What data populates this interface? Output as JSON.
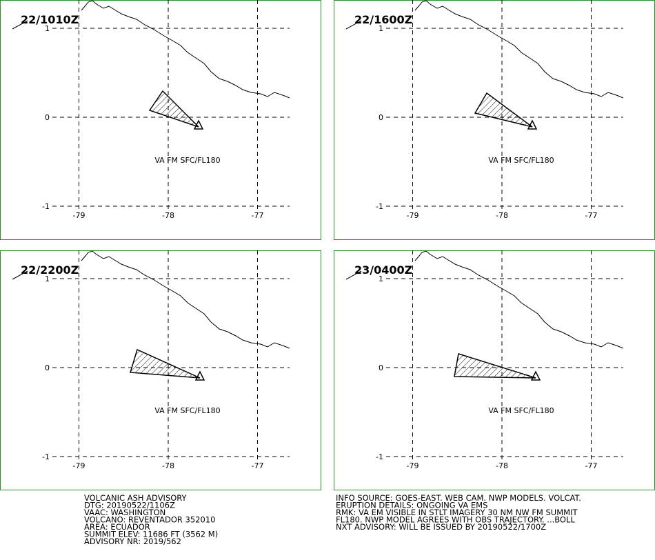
{
  "panels": [
    {
      "time": "22/1010Z",
      "label": "VA FM SFC/FL180"
    },
    {
      "time": "22/1600Z",
      "label": "VA FM SFC/FL180"
    },
    {
      "time": "22/2200Z",
      "label": "VA FM SFC/FL180"
    },
    {
      "time": "23/0400Z",
      "label": "VA FM SFC/FL180"
    }
  ],
  "lon_ticks": [
    -79,
    -78,
    -77
  ],
  "lat_ticks": [
    1,
    0,
    -1
  ],
  "advisory_left": [
    "VOLCANIC ASH ADVISORY",
    "DTG: 20190522/1106Z",
    "VAAC: WASHINGTON",
    "VOLCANO: REVENTADOR 352010",
    "AREA: ECUADOR",
    "SUMMIT ELEV: 11686 FT (3562 M)",
    "ADVISORY NR: 2019/562"
  ],
  "advisory_right": [
    "INFO SOURCE: GOES-EAST. WEB CAM. NWP MODELS. VOLCAT.",
    "ERUPTION DETAILS: ONGOING VA EMS",
    "RMK: VA EM VISIBLE IN STLT IMAGERY 30 NM NW FM SUMMIT",
    "FL180. NWP MODEL AGREES WITH OBS TRAJECTORY. ...BOLL",
    "NXT ADVISORY: WILL BE ISSUED BY 20190522/1700Z"
  ]
}
